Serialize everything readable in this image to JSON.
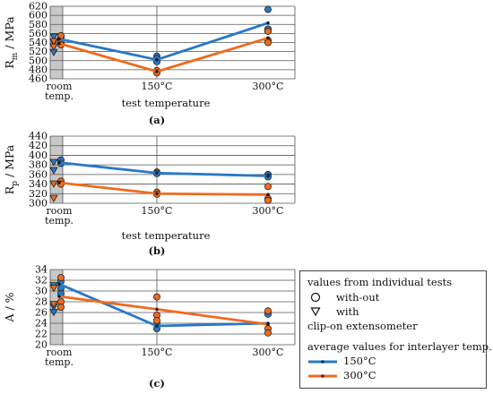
{
  "chart_data": [
    {
      "type": "scatter",
      "panel_label": "(a)",
      "ylabel_main": "R",
      "ylabel_sub": "m",
      "ylabel_unit": " / MPa",
      "xlabel": "test temperature",
      "categories": [
        "room temp.",
        "150°C",
        "300°C"
      ],
      "ylim": [
        460,
        620
      ],
      "yticks": [
        460,
        480,
        500,
        520,
        540,
        560,
        580,
        600,
        620
      ],
      "series": [
        {
          "name": "150°C",
          "color": "#2878c8",
          "values": [
            548,
            502,
            583
          ]
        },
        {
          "name": "300°C",
          "color": "#f06a1e",
          "values": [
            538,
            476,
            550
          ]
        }
      ],
      "individual_tests": [
        {
          "group": "150°C",
          "marker": "circle",
          "x": "room temp.",
          "values": [
            545,
            552
          ]
        },
        {
          "group": "150°C",
          "marker": "triangle",
          "x": "room temp.",
          "values": [
            552,
            540,
            530,
            518
          ]
        },
        {
          "group": "150°C",
          "marker": "circle",
          "x": "150°C",
          "values": [
            510,
            505,
            498
          ]
        },
        {
          "group": "150°C",
          "marker": "circle",
          "x": "300°C",
          "values": [
            613,
            570,
            565
          ]
        },
        {
          "group": "300°C",
          "marker": "circle",
          "x": "room temp.",
          "values": [
            555,
            540,
            535
          ]
        },
        {
          "group": "300°C",
          "marker": "triangle",
          "x": "room temp.",
          "values": [
            542,
            530
          ]
        },
        {
          "group": "300°C",
          "marker": "circle",
          "x": "150°C",
          "values": [
            478,
            473
          ]
        },
        {
          "group": "300°C",
          "marker": "circle",
          "x": "300°C",
          "values": [
            565,
            545,
            540
          ]
        }
      ]
    },
    {
      "type": "scatter",
      "panel_label": "(b)",
      "ylabel_main": "R",
      "ylabel_sub": "p",
      "ylabel_unit": " / MPa",
      "xlabel": "test temperature",
      "categories": [
        "room temp.",
        "150°C",
        "300°C"
      ],
      "ylim": [
        300,
        440
      ],
      "yticks": [
        300,
        320,
        340,
        360,
        380,
        400,
        420,
        440
      ],
      "series": [
        {
          "name": "150°C",
          "color": "#2878c8",
          "values": [
            385,
            363,
            357
          ]
        },
        {
          "name": "300°C",
          "color": "#f06a1e",
          "values": [
            343,
            320,
            318
          ]
        }
      ],
      "individual_tests": [
        {
          "group": "150°C",
          "marker": "circle",
          "x": "room temp.",
          "values": [
            390,
            383
          ]
        },
        {
          "group": "150°C",
          "marker": "triangle",
          "x": "room temp.",
          "values": [
            385,
            368
          ]
        },
        {
          "group": "150°C",
          "marker": "circle",
          "x": "150°C",
          "values": [
            365,
            362
          ]
        },
        {
          "group": "150°C",
          "marker": "circle",
          "x": "300°C",
          "values": [
            360,
            355
          ]
        },
        {
          "group": "300°C",
          "marker": "circle",
          "x": "room temp.",
          "values": [
            346,
            340
          ]
        },
        {
          "group": "300°C",
          "marker": "triangle",
          "x": "room temp.",
          "values": [
            340,
            310
          ]
        },
        {
          "group": "300°C",
          "marker": "circle",
          "x": "150°C",
          "values": [
            323,
            319
          ]
        },
        {
          "group": "300°C",
          "marker": "circle",
          "x": "300°C",
          "values": [
            335,
            310,
            306
          ]
        }
      ]
    },
    {
      "type": "scatter",
      "panel_label": "(c)",
      "ylabel_main": "A / %",
      "ylabel_sub": "",
      "ylabel_unit": "",
      "xlabel": "",
      "categories": [
        "room temp.",
        "150°C",
        "300°C"
      ],
      "ylim": [
        20,
        34
      ],
      "yticks": [
        20,
        22,
        24,
        26,
        28,
        30,
        32,
        34
      ],
      "series": [
        {
          "name": "150°C",
          "color": "#2878c8",
          "values": [
            31.3,
            23.5,
            24.0
          ]
        },
        {
          "name": "300°C",
          "color": "#f06a1e",
          "values": [
            29.0,
            26.6,
            23.8
          ]
        }
      ],
      "individual_tests": [
        {
          "group": "150°C",
          "marker": "circle",
          "x": "room temp.",
          "values": [
            31.8,
            30.5,
            29.5
          ]
        },
        {
          "group": "150°C",
          "marker": "triangle",
          "x": "room temp.",
          "values": [
            31.0,
            27.0,
            26.0
          ]
        },
        {
          "group": "150°C",
          "marker": "circle",
          "x": "150°C",
          "values": [
            23.9,
            23.0
          ]
        },
        {
          "group": "150°C",
          "marker": "circle",
          "x": "300°C",
          "values": [
            25.7
          ]
        },
        {
          "group": "300°C",
          "marker": "circle",
          "x": "room temp.",
          "values": [
            32.5,
            28.0,
            27.0
          ]
        },
        {
          "group": "300°C",
          "marker": "triangle",
          "x": "room temp.",
          "values": [
            30.5,
            27.5
          ]
        },
        {
          "group": "300°C",
          "marker": "circle",
          "x": "150°C",
          "values": [
            28.9,
            25.5,
            24.5
          ]
        },
        {
          "group": "300°C",
          "marker": "circle",
          "x": "300°C",
          "values": [
            26.3,
            23.0,
            22.2
          ]
        }
      ]
    }
  ],
  "legend": {
    "title": "values from individual tests",
    "without_label": "with-out",
    "with_label": "with",
    "footer": "clip-on extensometer",
    "avg_title": "average values for interlayer temp.:",
    "avg_150": "150°C",
    "avg_300": "300°C",
    "color_150": "#2878c8",
    "color_300": "#f06a1e"
  },
  "colors": {
    "room_band": "#c8c8c8",
    "grid": "#555555"
  }
}
